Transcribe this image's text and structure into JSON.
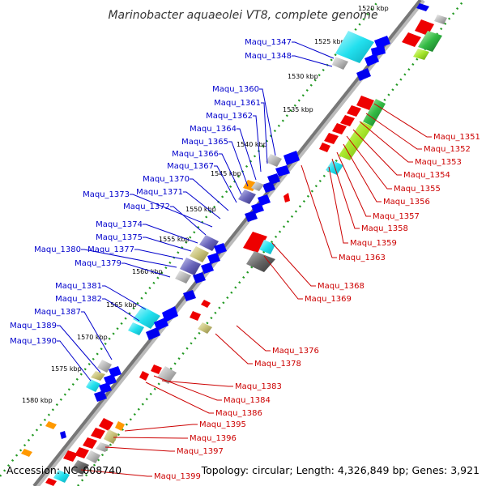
{
  "title": "Marinobacter aquaeolei VT8, complete genome",
  "footer": {
    "accession": "Accession: NC_008740",
    "topology": "Topology: circular; Length: 4,326,849 bp; Genes: 3,921"
  },
  "colors": {
    "forward_label": "#0000cc",
    "reverse_label": "#cc0000",
    "backbone": "#777777",
    "tick": "#229922"
  },
  "kbp_labels": [
    "1520 kbp",
    "1525 kbp",
    "1530 kbp",
    "1535 kbp",
    "1540 kbp",
    "1545 kbp",
    "1550 kbp",
    "1555 kbp",
    "1560 kbp",
    "1565 kbp",
    "1570 kbp",
    "1575 kbp",
    "1580 kbp"
  ],
  "blue_labels": [
    "Maqu_1347",
    "Maqu_1348",
    "Maqu_1360",
    "Maqu_1361",
    "Maqu_1362",
    "Maqu_1364",
    "Maqu_1365",
    "Maqu_1366",
    "Maqu_1367",
    "Maqu_1370",
    "Maqu_1371",
    "Maqu_1373",
    "Maqu_1372",
    "Maqu_1374",
    "Maqu_1375",
    "Maqu_1377",
    "Maqu_1380",
    "Maqu_1379",
    "Maqu_1381",
    "Maqu_1382",
    "Maqu_1387",
    "Maqu_1389",
    "Maqu_1390"
  ],
  "red_labels": [
    "Maqu_1351",
    "Maqu_1352",
    "Maqu_1353",
    "Maqu_1354",
    "Maqu_1355",
    "Maqu_1356",
    "Maqu_1357",
    "Maqu_1358",
    "Maqu_1359",
    "Maqu_1363",
    "Maqu_1368",
    "Maqu_1369",
    "Maqu_1376",
    "Maqu_1378",
    "Maqu_1383",
    "Maqu_1384",
    "Maqu_1386",
    "Maqu_1395",
    "Maqu_1396",
    "Maqu_1397",
    "Maqu_1399"
  ]
}
